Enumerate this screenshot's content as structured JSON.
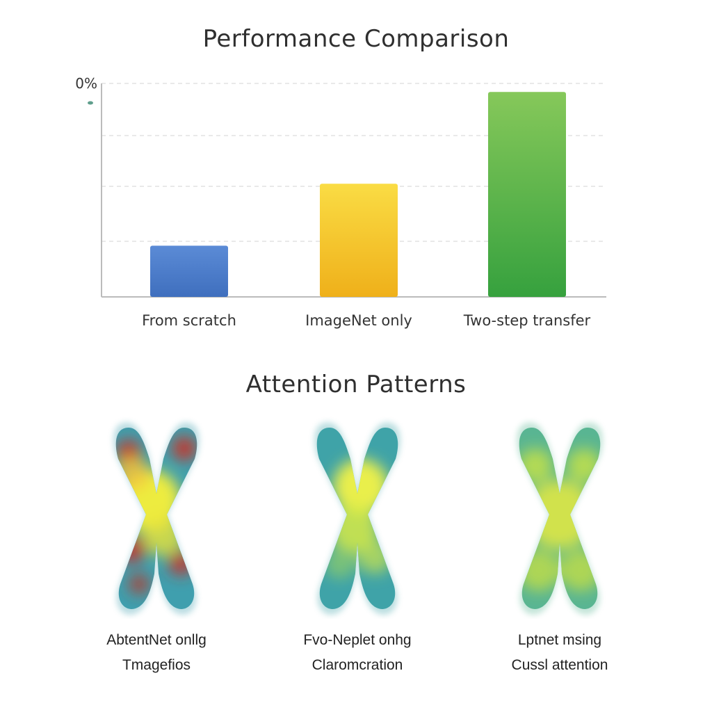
{
  "chart_data": [
    {
      "type": "bar",
      "title": "Performance Comparison",
      "categories": [
        "From scratch",
        "ImageNet only",
        "Two-step transfer"
      ],
      "values": [
        24,
        53,
        96
      ],
      "ylim": [
        0,
        100
      ],
      "y_tick_labels": [
        "0%"
      ],
      "grid": true,
      "colors": [
        "#4a7cc9",
        "#f2bd22",
        "#4cae44"
      ]
    }
  ],
  "attention": {
    "title": "Attention Patterns",
    "panels": [
      {
        "caption_line1": "AbtentNet onllg",
        "caption_line2": "Tmagefios",
        "pattern": "red-yellow-hot"
      },
      {
        "caption_line1": "Fvo-Neplet onhg",
        "caption_line2": "Claromcration",
        "pattern": "teal-yellow-center"
      },
      {
        "caption_line1": "Lptnet msing",
        "caption_line2": "Cussl attention",
        "pattern": "yellow-green-diffuse"
      }
    ]
  }
}
